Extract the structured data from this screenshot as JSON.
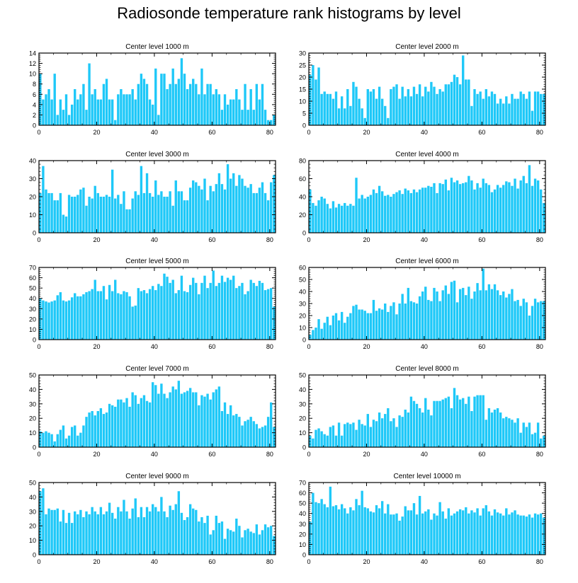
{
  "title": "Radiosonde temperature rank histograms by level",
  "bar_color": "#1EC8F8",
  "chart_data": [
    {
      "type": "bar",
      "title": "Center level 1000 m",
      "ylim": [
        0,
        14
      ],
      "yticks": [
        0,
        2,
        4,
        6,
        8,
        10,
        12,
        14
      ],
      "xlim": [
        0,
        82
      ],
      "xticks": [
        0,
        20,
        40,
        60,
        80
      ],
      "values": [
        10,
        5,
        6,
        7,
        5,
        10,
        2,
        5,
        3,
        6,
        2,
        4,
        7,
        5,
        6,
        8,
        3,
        12,
        6,
        7,
        5,
        5,
        8,
        9,
        5,
        5,
        1,
        6,
        7,
        6,
        6,
        6,
        7,
        5,
        8,
        10,
        9,
        8,
        5,
        4,
        11,
        2,
        10,
        10,
        7,
        8,
        11,
        8,
        9,
        13,
        10,
        7,
        8,
        9,
        8,
        6,
        11,
        6,
        8,
        8,
        6,
        7,
        6,
        3,
        6,
        4,
        5,
        5,
        7,
        5,
        3,
        8,
        3,
        7,
        3,
        8,
        5,
        8,
        3,
        1,
        1,
        2
      ]
    },
    {
      "type": "bar",
      "title": "Center level 2000 m",
      "ylim": [
        0,
        30
      ],
      "yticks": [
        0,
        5,
        10,
        15,
        20,
        25,
        30
      ],
      "xlim": [
        0,
        82
      ],
      "xticks": [
        0,
        20,
        40,
        60,
        80
      ],
      "values": [
        21,
        25,
        19,
        24,
        13,
        14,
        13,
        13,
        11,
        14,
        7,
        12,
        7,
        15,
        8,
        18,
        16,
        11,
        7,
        3,
        15,
        14,
        15,
        11,
        16,
        11,
        8,
        3,
        15,
        16,
        17,
        11,
        16,
        12,
        15,
        12,
        16,
        13,
        17,
        12,
        16,
        14,
        18,
        16,
        13,
        15,
        14,
        17,
        17,
        18,
        21,
        20,
        17,
        29,
        19,
        19,
        8,
        15,
        13,
        14,
        11,
        15,
        12,
        14,
        13,
        9,
        11,
        9,
        12,
        9,
        13,
        11,
        11,
        14,
        13,
        11,
        14,
        6,
        14,
        14,
        13,
        13
      ]
    },
    {
      "type": "bar",
      "title": "Center level 3000 m",
      "ylim": [
        0,
        40
      ],
      "yticks": [
        0,
        10,
        20,
        30,
        40
      ],
      "xlim": [
        0,
        82
      ],
      "xticks": [
        0,
        20,
        40,
        60,
        80
      ],
      "values": [
        22,
        37,
        24,
        22,
        22,
        18,
        18,
        22,
        10,
        9,
        21,
        20,
        20,
        21,
        24,
        25,
        15,
        20,
        19,
        26,
        22,
        20,
        20,
        21,
        20,
        35,
        19,
        21,
        16,
        23,
        13,
        13,
        19,
        23,
        21,
        37,
        22,
        33,
        22,
        20,
        29,
        21,
        23,
        20,
        20,
        23,
        15,
        29,
        23,
        23,
        18,
        18,
        25,
        29,
        28,
        26,
        24,
        30,
        18,
        26,
        23,
        27,
        33,
        27,
        24,
        38,
        30,
        33,
        26,
        32,
        30,
        26,
        25,
        27,
        22,
        22,
        25,
        28,
        22,
        18,
        28,
        32
      ]
    },
    {
      "type": "bar",
      "title": "Center level 4000 m",
      "ylim": [
        0,
        80
      ],
      "yticks": [
        0,
        20,
        40,
        60,
        80
      ],
      "xlim": [
        0,
        82
      ],
      "xticks": [
        0,
        20,
        40,
        60,
        80
      ],
      "values": [
        48,
        33,
        30,
        36,
        40,
        38,
        32,
        27,
        35,
        28,
        32,
        30,
        33,
        30,
        32,
        30,
        61,
        38,
        42,
        38,
        40,
        42,
        48,
        44,
        52,
        46,
        41,
        42,
        40,
        43,
        45,
        47,
        43,
        49,
        47,
        44,
        48,
        45,
        48,
        50,
        50,
        52,
        51,
        55,
        44,
        55,
        54,
        59,
        47,
        61,
        56,
        58,
        54,
        55,
        56,
        63,
        58,
        48,
        55,
        50,
        60,
        55,
        53,
        45,
        48,
        53,
        50,
        53,
        57,
        56,
        52,
        60,
        49,
        58,
        63,
        55,
        75,
        52,
        60,
        58,
        48,
        33
      ]
    },
    {
      "type": "bar",
      "title": "Center level 5000 m",
      "ylim": [
        0,
        70
      ],
      "yticks": [
        0,
        10,
        20,
        30,
        40,
        50,
        60,
        70
      ],
      "xlim": [
        0,
        82
      ],
      "xticks": [
        0,
        20,
        40,
        60,
        80
      ],
      "values": [
        40,
        38,
        37,
        36,
        37,
        38,
        43,
        46,
        38,
        37,
        38,
        41,
        45,
        42,
        42,
        44,
        46,
        47,
        49,
        58,
        47,
        47,
        52,
        39,
        53,
        47,
        58,
        45,
        44,
        47,
        46,
        42,
        32,
        33,
        50,
        47,
        48,
        45,
        49,
        52,
        48,
        54,
        52,
        64,
        61,
        55,
        58,
        45,
        48,
        62,
        47,
        46,
        53,
        60,
        55,
        44,
        55,
        62,
        50,
        55,
        67,
        52,
        55,
        62,
        56,
        60,
        58,
        62,
        50,
        52,
        55,
        44,
        47,
        58,
        55,
        52,
        57,
        55,
        48,
        49,
        50,
        32
      ]
    },
    {
      "type": "bar",
      "title": "Center level 6000 m",
      "ylim": [
        0,
        60
      ],
      "yticks": [
        0,
        10,
        20,
        30,
        40,
        50,
        60
      ],
      "xlim": [
        0,
        82
      ],
      "xticks": [
        0,
        20,
        40,
        60,
        80
      ],
      "values": [
        4,
        8,
        10,
        17,
        9,
        14,
        19,
        12,
        20,
        22,
        16,
        23,
        14,
        19,
        22,
        28,
        29,
        25,
        25,
        24,
        22,
        22,
        33,
        24,
        26,
        25,
        30,
        23,
        28,
        31,
        21,
        30,
        38,
        30,
        43,
        32,
        31,
        30,
        36,
        40,
        44,
        33,
        32,
        43,
        40,
        32,
        41,
        45,
        38,
        48,
        49,
        31,
        42,
        43,
        37,
        44,
        34,
        40,
        47,
        41,
        59,
        41,
        46,
        42,
        46,
        41,
        37,
        40,
        35,
        38,
        42,
        32,
        33,
        28,
        34,
        31,
        20,
        28,
        34,
        31,
        32,
        32
      ]
    },
    {
      "type": "bar",
      "title": "Center level 7000 m",
      "ylim": [
        0,
        50
      ],
      "yticks": [
        0,
        10,
        20,
        30,
        40,
        50
      ],
      "xlim": [
        0,
        82
      ],
      "xticks": [
        0,
        20,
        40,
        60,
        80
      ],
      "values": [
        11,
        10,
        11,
        10,
        9,
        4,
        9,
        12,
        15,
        6,
        8,
        14,
        15,
        8,
        10,
        15,
        21,
        24,
        25,
        22,
        25,
        27,
        23,
        24,
        30,
        29,
        28,
        33,
        33,
        31,
        34,
        28,
        38,
        36,
        30,
        34,
        36,
        32,
        31,
        45,
        43,
        37,
        44,
        37,
        34,
        38,
        42,
        40,
        46,
        37,
        38,
        39,
        41,
        38,
        38,
        29,
        36,
        35,
        37,
        33,
        38,
        40,
        42,
        25,
        31,
        23,
        29,
        22,
        23,
        21,
        15,
        18,
        19,
        21,
        18,
        16,
        13,
        14,
        15,
        21,
        31,
        14
      ]
    },
    {
      "type": "bar",
      "title": "Center level 8000 m",
      "ylim": [
        0,
        50
      ],
      "yticks": [
        0,
        10,
        20,
        30,
        40,
        50
      ],
      "xlim": [
        0,
        82
      ],
      "xticks": [
        0,
        20,
        40,
        60,
        80
      ],
      "values": [
        8,
        6,
        12,
        13,
        11,
        9,
        8,
        14,
        15,
        8,
        17,
        8,
        16,
        17,
        16,
        17,
        12,
        19,
        16,
        15,
        23,
        14,
        19,
        18,
        24,
        20,
        23,
        27,
        18,
        20,
        14,
        22,
        21,
        26,
        24,
        35,
        32,
        30,
        27,
        24,
        34,
        26,
        22,
        32,
        32,
        32,
        33,
        34,
        35,
        27,
        41,
        36,
        33,
        34,
        30,
        35,
        25,
        35,
        36,
        36,
        36,
        19,
        27,
        24,
        26,
        27,
        24,
        20,
        21,
        20,
        19,
        17,
        20,
        10,
        17,
        14,
        17,
        9,
        10,
        17,
        6,
        8
      ]
    },
    {
      "type": "bar",
      "title": "Center level 9000 m",
      "ylim": [
        0,
        50
      ],
      "yticks": [
        0,
        10,
        20,
        30,
        40,
        50
      ],
      "xlim": [
        0,
        82
      ],
      "xticks": [
        0,
        20,
        40,
        60,
        80
      ],
      "values": [
        44,
        46,
        28,
        32,
        31,
        31,
        32,
        23,
        31,
        22,
        29,
        22,
        30,
        28,
        31,
        26,
        30,
        28,
        33,
        30,
        28,
        33,
        28,
        30,
        36,
        29,
        25,
        33,
        30,
        38,
        30,
        25,
        32,
        39,
        26,
        33,
        26,
        33,
        30,
        35,
        33,
        30,
        40,
        30,
        26,
        34,
        31,
        35,
        44,
        29,
        24,
        26,
        35,
        32,
        31,
        23,
        26,
        22,
        27,
        14,
        17,
        27,
        22,
        23,
        11,
        18,
        17,
        16,
        25,
        20,
        12,
        17,
        18,
        16,
        15,
        21,
        14,
        17,
        21,
        19,
        20,
        13
      ]
    },
    {
      "type": "bar",
      "title": "Center level 10000 m",
      "ylim": [
        0,
        70
      ],
      "yticks": [
        0,
        10,
        20,
        30,
        40,
        50,
        60,
        70
      ],
      "xlim": [
        0,
        82
      ],
      "xticks": [
        0,
        20,
        40,
        60,
        80
      ],
      "values": [
        32,
        60,
        51,
        50,
        54,
        49,
        46,
        66,
        47,
        48,
        44,
        49,
        45,
        40,
        46,
        43,
        54,
        48,
        62,
        46,
        45,
        42,
        41,
        48,
        45,
        52,
        40,
        49,
        39,
        39,
        40,
        33,
        37,
        47,
        43,
        43,
        50,
        39,
        57,
        40,
        42,
        44,
        34,
        40,
        38,
        51,
        42,
        35,
        45,
        38,
        40,
        42,
        44,
        43,
        46,
        40,
        43,
        41,
        45,
        38,
        45,
        48,
        42,
        38,
        44,
        41,
        40,
        38,
        45,
        39,
        41,
        43,
        39,
        38,
        38,
        37,
        39,
        36,
        40,
        39,
        40,
        36
      ]
    }
  ]
}
